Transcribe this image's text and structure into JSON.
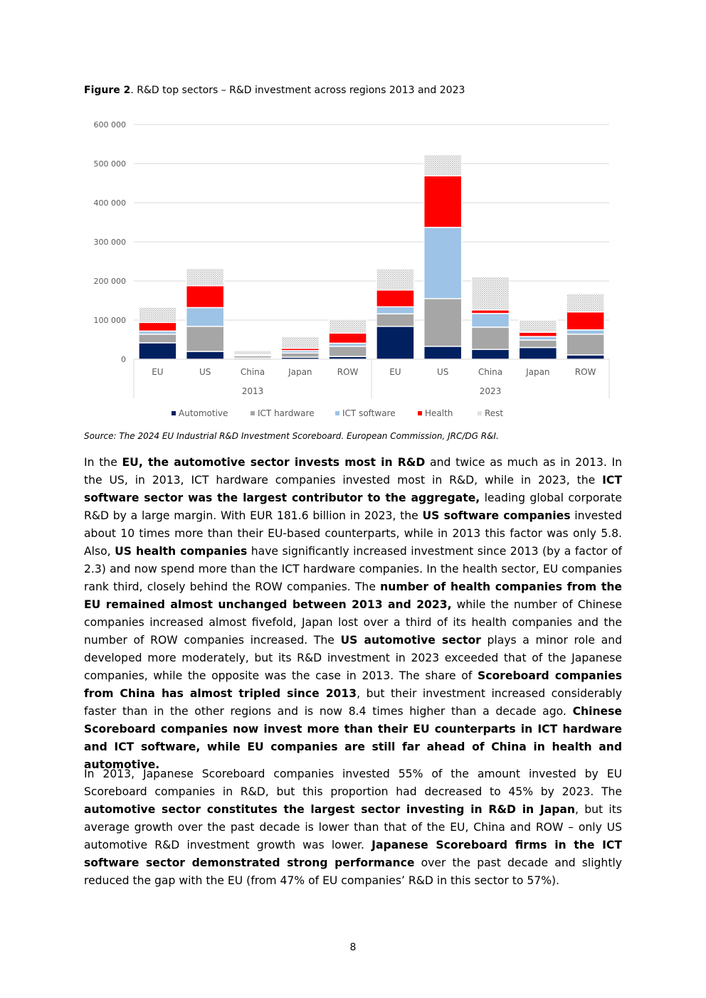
{
  "figure": {
    "label": "Figure 2",
    "caption": ". R&D top sectors – R&D investment across regions 2013 and 2023",
    "source": "Source: The 2024 EU Industrial R&D Investment Scoreboard. European Commission, JRC/DG R&I."
  },
  "chart_data": {
    "type": "bar",
    "stacked": true,
    "groups": [
      "2013",
      "2023"
    ],
    "categories": [
      "EU",
      "US",
      "China",
      "Japan",
      "ROW",
      "EU",
      "US",
      "China",
      "Japan",
      "ROW"
    ],
    "group_of_category": [
      "2013",
      "2013",
      "2013",
      "2013",
      "2013",
      "2023",
      "2023",
      "2023",
      "2023",
      "2023"
    ],
    "series": [
      {
        "name": "Automotive",
        "color": "#002060",
        "pattern": "solid",
        "values": [
          42000,
          20000,
          3000,
          5000,
          7000,
          84000,
          33000,
          25000,
          30000,
          11000
        ]
      },
      {
        "name": "ICT hardware",
        "color": "#a6a6a6",
        "pattern": "solid",
        "values": [
          22000,
          64000,
          6000,
          11000,
          26000,
          32000,
          122000,
          57000,
          19000,
          53000
        ]
      },
      {
        "name": "ICT software",
        "color": "#9dc3e6",
        "pattern": "solid",
        "values": [
          8000,
          48000,
          2000,
          6000,
          8000,
          18000,
          182000,
          35000,
          9000,
          11000
        ]
      },
      {
        "name": "Health",
        "color": "#ff0000",
        "pattern": "solid",
        "values": [
          22000,
          56000,
          1000,
          6000,
          26000,
          43000,
          132000,
          9000,
          11000,
          46000
        ]
      },
      {
        "name": "Rest",
        "color": "#d9d9d9",
        "pattern": "dotted",
        "values": [
          39000,
          44000,
          10000,
          30000,
          35000,
          54000,
          54000,
          85000,
          31000,
          47000
        ]
      }
    ],
    "ylim": [
      0,
      600000
    ],
    "yticks": [
      0,
      100000,
      200000,
      300000,
      400000,
      500000,
      600000
    ],
    "ytick_labels": [
      "0",
      "100 000",
      "200 000",
      "300 000",
      "400 000",
      "500 000",
      "600 000"
    ],
    "grid": true,
    "legend": "bottom"
  },
  "page_number": "8"
}
